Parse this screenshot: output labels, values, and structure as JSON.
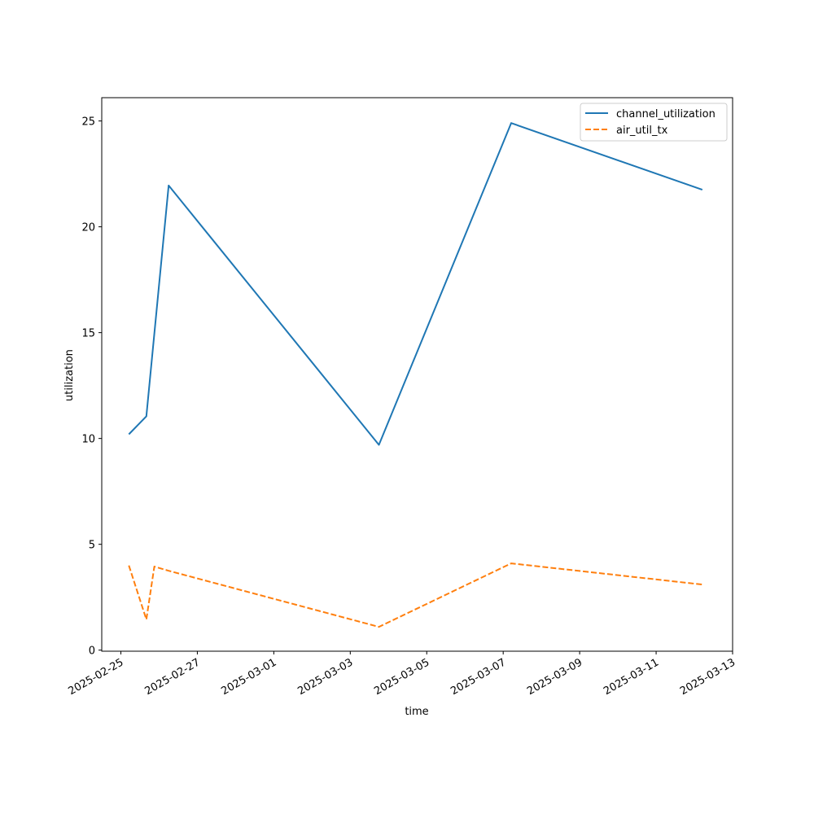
{
  "chart_data": {
    "type": "line",
    "title": "",
    "xlabel": "time",
    "ylabel": "utilization",
    "x_ticks": [
      "2025-02-25",
      "2025-02-27",
      "2025-03-01",
      "2025-03-03",
      "2025-03-05",
      "2025-03-07",
      "2025-03-09",
      "2025-03-11",
      "2025-03-13"
    ],
    "y_ticks": [
      0,
      5,
      10,
      15,
      20,
      25
    ],
    "xlim": [
      "2025-02-24T12:00",
      "2025-03-13T00:00"
    ],
    "ylim": [
      -0.05,
      26.1
    ],
    "grid": false,
    "legend_position": "top-right",
    "series": [
      {
        "name": "channel_utilization",
        "color": "#1f77b4",
        "style": "solid",
        "points": [
          {
            "x": "2025-02-25T05:00",
            "y": 10.2
          },
          {
            "x": "2025-02-25T16:00",
            "y": 11.05
          },
          {
            "x": "2025-02-26T06:00",
            "y": 21.95
          },
          {
            "x": "2025-03-03T18:00",
            "y": 9.7
          },
          {
            "x": "2025-03-07T05:00",
            "y": 24.9
          },
          {
            "x": "2025-03-12T05:00",
            "y": 21.75
          }
        ]
      },
      {
        "name": "air_util_tx",
        "color": "#ff7f0e",
        "style": "dashed",
        "points": [
          {
            "x": "2025-02-25T05:00",
            "y": 4.0
          },
          {
            "x": "2025-02-25T16:00",
            "y": 1.45
          },
          {
            "x": "2025-02-25T21:00",
            "y": 3.95
          },
          {
            "x": "2025-02-26T06:00",
            "y": 3.75
          },
          {
            "x": "2025-03-03T18:00",
            "y": 1.1
          },
          {
            "x": "2025-03-07T05:00",
            "y": 4.1
          },
          {
            "x": "2025-03-12T05:00",
            "y": 3.1
          }
        ]
      }
    ]
  }
}
